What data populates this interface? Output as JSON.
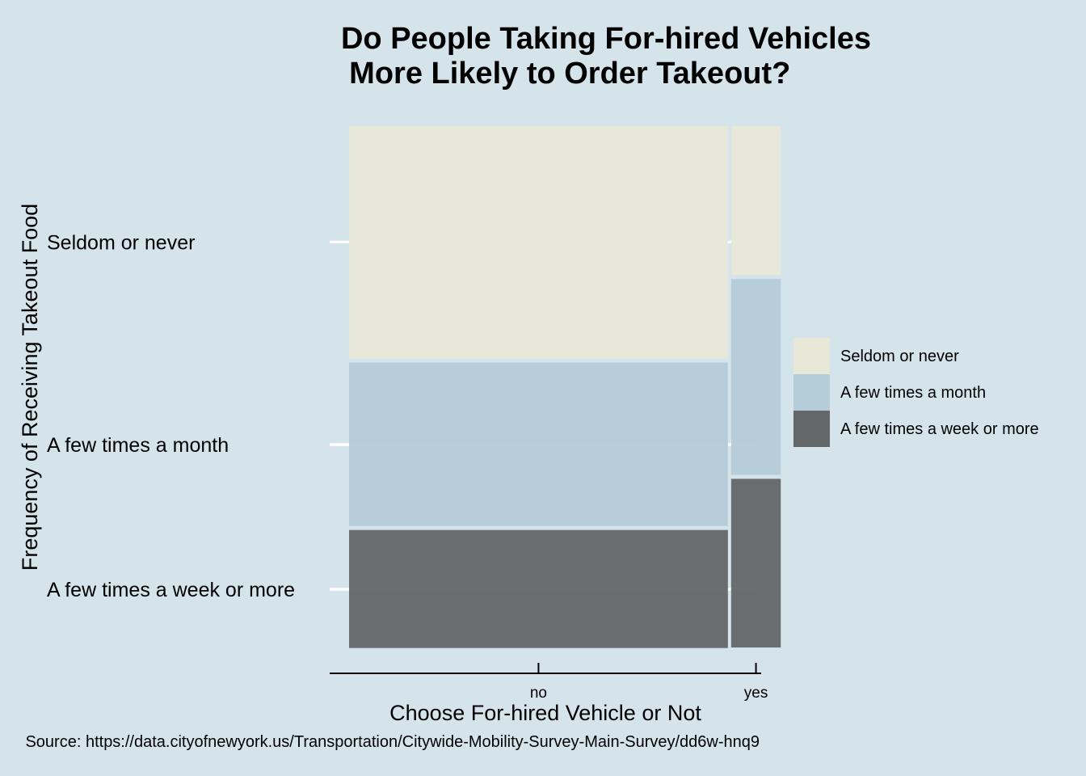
{
  "colors": {
    "background": "#d5e4eb",
    "gridline": "#ffffff",
    "seldom": "#e8e8d8",
    "month": "#b5cdd9",
    "week": "#656869"
  },
  "chart_data": {
    "type": "mosaic",
    "title": [
      "Do People Taking For-hired Vehicles",
      " More Likely to Order Takeout?"
    ],
    "xlabel": "Choose For-hired Vehicle or Not",
    "ylabel": "Frequency of Receiving Takeout Food",
    "caption": "Source: https://data.cityofnewyork.us/Transportation/Citywide-Mobility-Survey-Main-Survey/dd6w-hnq9",
    "x_categories": [
      "no",
      "yes"
    ],
    "x_widths": [
      0.878,
      0.115
    ],
    "y_categories": [
      "Seldom or never",
      "A few times a month",
      "A few times a week or more"
    ],
    "y_ticks": [
      0.778,
      0.39,
      0.113
    ],
    "series": [
      {
        "name": "Seldom or never",
        "color_key": "seldom",
        "values": [
          0.445,
          0.285
        ]
      },
      {
        "name": "A few times a month",
        "color_key": "month",
        "values": [
          0.313,
          0.375
        ]
      },
      {
        "name": "A few times a week or more",
        "color_key": "week",
        "values": [
          0.226,
          0.323
        ]
      }
    ],
    "legend": {
      "position": "right",
      "items": [
        "Seldom or never",
        "A few times a month",
        "A few times a week or more"
      ]
    },
    "grid": true
  }
}
